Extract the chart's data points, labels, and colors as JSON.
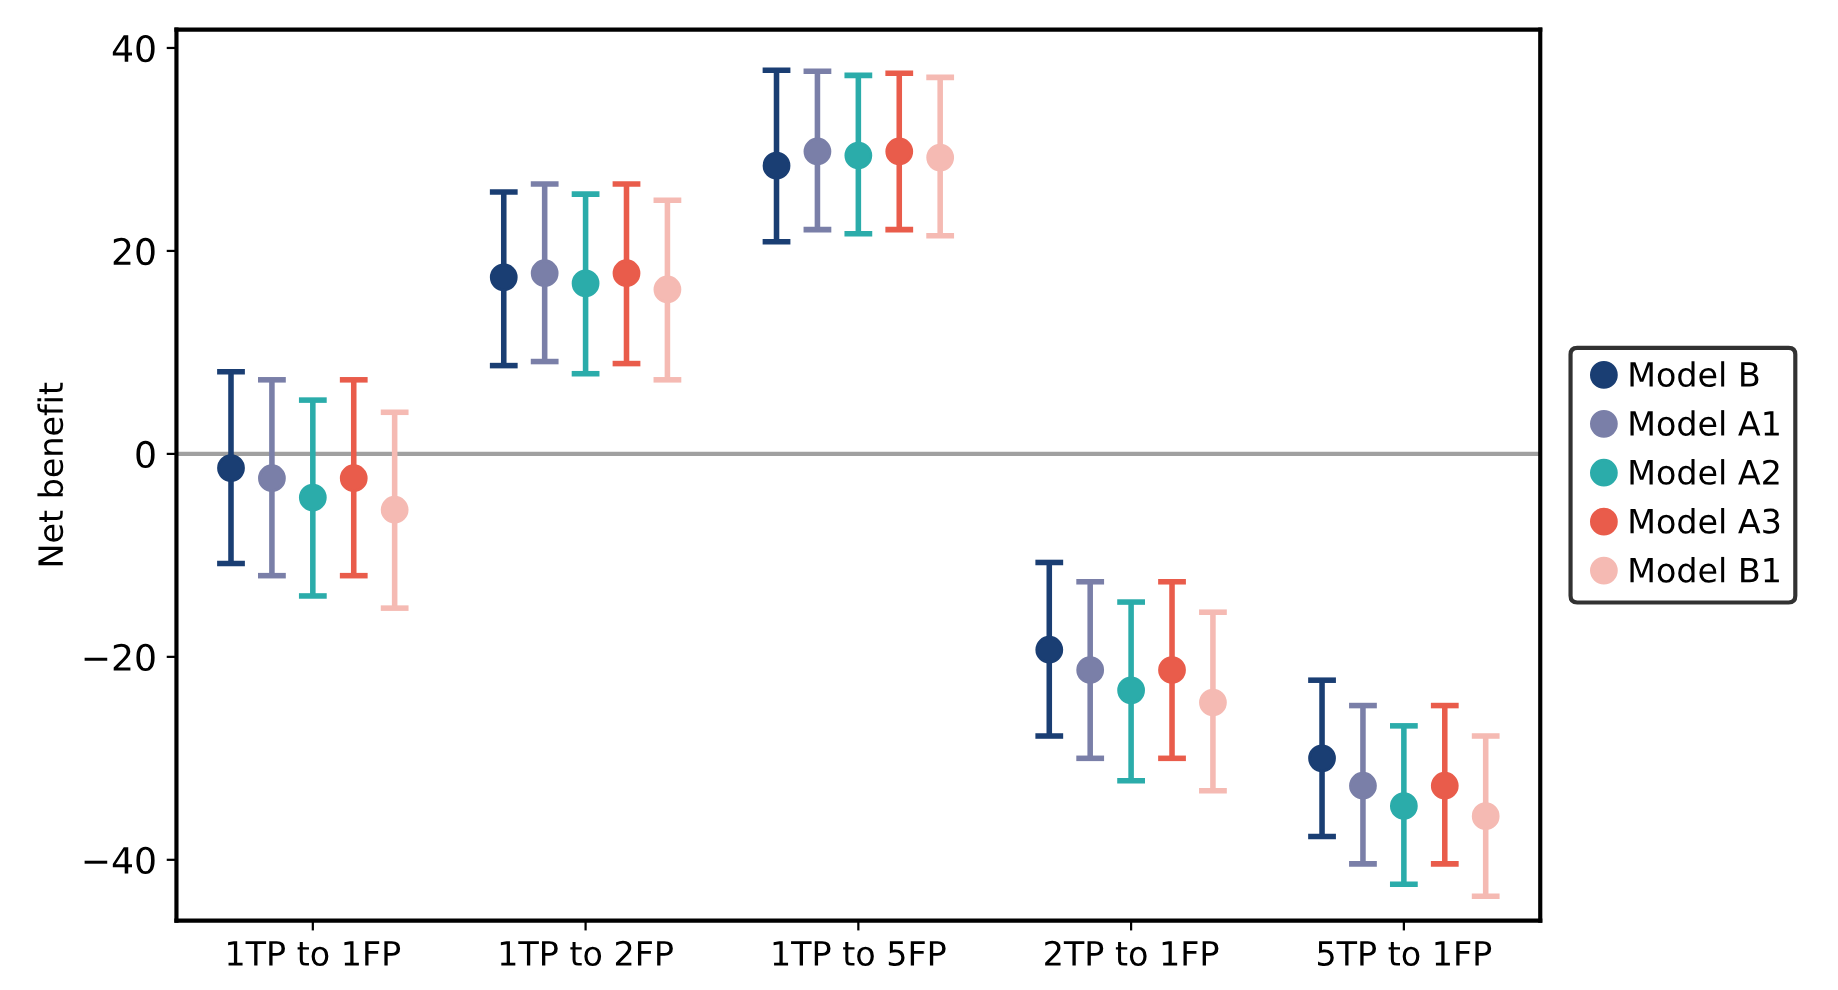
{
  "chart_data": {
    "type": "scatter",
    "ylabel": "Net benefit",
    "categories": [
      "1TP to 1FP",
      "1TP to 2FP",
      "1TP to 5FP",
      "2TP to 1FP",
      "5TP to 1FP"
    ],
    "series": [
      {
        "name": "Model B",
        "color": "#1a3e73",
        "values": [
          -1.4,
          17.4,
          28.4,
          -19.3,
          -30
        ],
        "errors": [
          [
            -10.8,
            8.1
          ],
          [
            8.7,
            25.8
          ],
          [
            20.9,
            37.8
          ],
          [
            -27.8,
            -10.7
          ],
          [
            -37.7,
            -22.3
          ]
        ]
      },
      {
        "name": "Model A1",
        "color": "#7a7fa8",
        "values": [
          -2.4,
          17.8,
          29.8,
          -21.3,
          -32.7
        ],
        "errors": [
          [
            -12,
            7.3
          ],
          [
            9.1,
            26.6
          ],
          [
            22.1,
            37.7
          ],
          [
            -30,
            -12.6
          ],
          [
            -40.4,
            -24.8
          ]
        ]
      },
      {
        "name": "Model A2",
        "color": "#2bacaa",
        "values": [
          -4.3,
          16.8,
          29.4,
          -23.3,
          -34.7
        ],
        "errors": [
          [
            -14,
            5.3
          ],
          [
            7.9,
            25.6
          ],
          [
            21.7,
            37.3
          ],
          [
            -32.2,
            -14.6
          ],
          [
            -42.4,
            -26.8
          ]
        ]
      },
      {
        "name": "Model A3",
        "color": "#e95c4b",
        "values": [
          -2.4,
          17.8,
          29.8,
          -21.3,
          -32.7
        ],
        "errors": [
          [
            -12,
            7.3
          ],
          [
            8.9,
            26.6
          ],
          [
            22.1,
            37.5
          ],
          [
            -30,
            -12.6
          ],
          [
            -40.4,
            -24.8
          ]
        ]
      },
      {
        "name": "Model B1",
        "color": "#f5bab3",
        "values": [
          -5.5,
          16.2,
          29.2,
          -24.5,
          -35.7
        ],
        "errors": [
          [
            -15.2,
            4.1
          ],
          [
            7.3,
            25
          ],
          [
            21.5,
            37.1
          ],
          [
            -33.2,
            -15.6
          ],
          [
            -43.6,
            -27.8
          ]
        ]
      }
    ],
    "ylim": [
      -46,
      41.8
    ],
    "yticks": [
      {
        "value": -40,
        "label": "−40"
      },
      {
        "value": -20,
        "label": "−20"
      },
      0,
      20,
      40
    ],
    "ref_lines": [
      {
        "axis": "y",
        "value": 0,
        "color": "#a0a0a0"
      }
    ],
    "grid": false,
    "legend": "right",
    "marker": "circle"
  }
}
